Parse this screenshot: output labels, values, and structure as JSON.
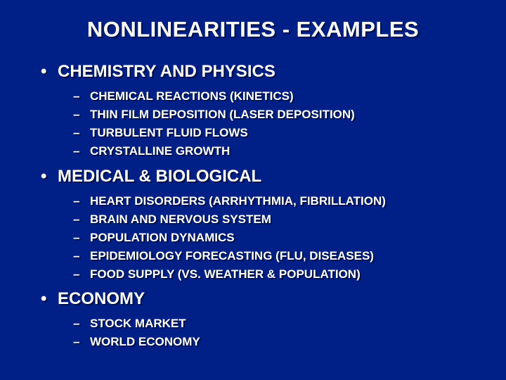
{
  "slide": {
    "background_color": "#002087",
    "text_color": "#ffffff",
    "font_family": "Arial",
    "title_fontsize": 31,
    "header_fontsize": 24,
    "sub_fontsize": 17,
    "text_shadow": "2px 2px 0 rgba(0,0,0,0.5)",
    "title": "NONLINEARITIES - EXAMPLES",
    "bullet_char": "•",
    "dash_char": "–",
    "sections": [
      {
        "header": "CHEMISTRY AND PHYSICS",
        "items": [
          "CHEMICAL REACTIONS (KINETICS)",
          "THIN FILM DEPOSITION (LASER DEPOSITION)",
          "TURBULENT FLUID FLOWS",
          "CRYSTALLINE GROWTH"
        ]
      },
      {
        "header": "MEDICAL & BIOLOGICAL",
        "items": [
          "HEART DISORDERS (ARRHYTHMIA, FIBRILLATION)",
          "BRAIN AND NERVOUS SYSTEM",
          "POPULATION DYNAMICS",
          "EPIDEMIOLOGY FORECASTING (FLU, DISEASES)",
          "FOOD SUPPLY (VS. WEATHER & POPULATION)"
        ]
      },
      {
        "header": "ECONOMY",
        "items": [
          "STOCK MARKET",
          "WORLD ECONOMY"
        ]
      }
    ]
  }
}
